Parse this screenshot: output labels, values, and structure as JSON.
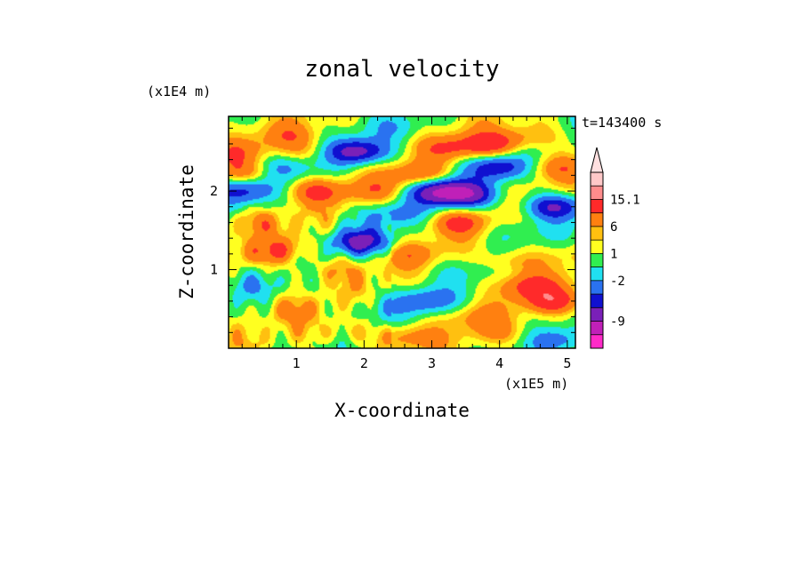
{
  "chart_data": {
    "type": "heatmap",
    "title": "zonal velocity",
    "xlabel": "X-coordinate",
    "ylabel": "Z-coordinate",
    "x_scale_label": "(x1E5 m)",
    "y_scale_label": "(x1E4 m)",
    "time_label": "t=143400 s",
    "xlim": [
      0,
      5.12
    ],
    "ylim": [
      0,
      2.95
    ],
    "x_ticks": [
      1,
      2,
      3,
      4,
      5
    ],
    "x_tick_labels": [
      "1",
      "2",
      "3",
      "4",
      "5"
    ],
    "y_ticks": [
      1,
      2
    ],
    "y_tick_labels": [
      "1",
      "2"
    ],
    "colorbar": {
      "levels": [
        "",
        "15.1",
        "",
        "6",
        "",
        "1",
        "",
        "-2",
        "",
        "",
        "-9",
        ""
      ],
      "colors": [
        "#ff2ac8",
        "#c020b8",
        "#7a20b8",
        "#1010d0",
        "#2a72f0",
        "#20e0f0",
        "#30ee50",
        "#ffff20",
        "#ffc010",
        "#ff8010",
        "#ff2a2a",
        "#ff8c8c",
        "#ffc8c8"
      ],
      "extend_max": true
    },
    "features": [
      {
        "x": 0.15,
        "z": 2.5,
        "u": 2.5
      },
      {
        "x": 0.3,
        "z": 2.25,
        "u": 3.5
      },
      {
        "x": 0.2,
        "z": 2.0,
        "u": -5
      },
      {
        "x": 0.4,
        "z": 1.6,
        "u": 2.0
      },
      {
        "x": 0.6,
        "z": 1.2,
        "u": 3.0
      },
      {
        "x": 0.3,
        "z": 0.8,
        "u": -1.5
      },
      {
        "x": 0.9,
        "z": 2.7,
        "u": 2.5
      },
      {
        "x": 0.8,
        "z": 2.3,
        "u": -3.0
      },
      {
        "x": 1.2,
        "z": 2.5,
        "u": 2.0
      },
      {
        "x": 1.3,
        "z": 2.0,
        "u": 4.0
      },
      {
        "x": 1.0,
        "z": 1.3,
        "u": 2.0
      },
      {
        "x": 0.9,
        "z": 0.5,
        "u": 1.5
      },
      {
        "x": 1.9,
        "z": 2.5,
        "u": -8
      },
      {
        "x": 2.2,
        "z": 2.0,
        "u": 2.5
      },
      {
        "x": 1.95,
        "z": 1.35,
        "u": -7
      },
      {
        "x": 1.5,
        "z": 1.0,
        "u": 2.0
      },
      {
        "x": 1.7,
        "z": 0.2,
        "u": 2.0
      },
      {
        "x": 2.1,
        "z": 0.5,
        "u": -1.0
      },
      {
        "x": 2.5,
        "z": 2.8,
        "u": -1.5
      },
      {
        "x": 2.8,
        "z": 2.2,
        "u": 4.0
      },
      {
        "x": 2.4,
        "z": 1.7,
        "u": -3.0
      },
      {
        "x": 2.7,
        "z": 1.2,
        "u": 2.5
      },
      {
        "x": 2.9,
        "z": 0.6,
        "u": -4.0
      },
      {
        "x": 2.6,
        "z": 0.15,
        "u": 3.0
      },
      {
        "x": 3.1,
        "z": 2.0,
        "u": -8
      },
      {
        "x": 3.3,
        "z": 2.55,
        "u": 3.5
      },
      {
        "x": 3.4,
        "z": 1.6,
        "u": 4.0
      },
      {
        "x": 3.5,
        "z": 1.0,
        "u": -1.0
      },
      {
        "x": 3.6,
        "z": 0.4,
        "u": 2.0
      },
      {
        "x": 3.5,
        "z": 1.95,
        "u": -7
      },
      {
        "x": 3.9,
        "z": 2.6,
        "u": 5.0
      },
      {
        "x": 4.0,
        "z": 2.3,
        "u": -6
      },
      {
        "x": 4.2,
        "z": 1.5,
        "u": -1.5
      },
      {
        "x": 4.4,
        "z": 0.8,
        "u": 4.5
      },
      {
        "x": 4.0,
        "z": 0.2,
        "u": 2.0
      },
      {
        "x": 4.5,
        "z": 2.7,
        "u": 2.5
      },
      {
        "x": 4.8,
        "z": 1.8,
        "u": -7
      },
      {
        "x": 4.8,
        "z": 2.3,
        "u": 3.0
      },
      {
        "x": 4.8,
        "z": 0.6,
        "u": 5.0
      },
      {
        "x": 5.0,
        "z": 1.2,
        "u": 1.5
      },
      {
        "x": 4.9,
        "z": 0.1,
        "u": -3.0
      },
      {
        "x": 4.2,
        "z": 1.1,
        "u": 3.0
      }
    ]
  }
}
